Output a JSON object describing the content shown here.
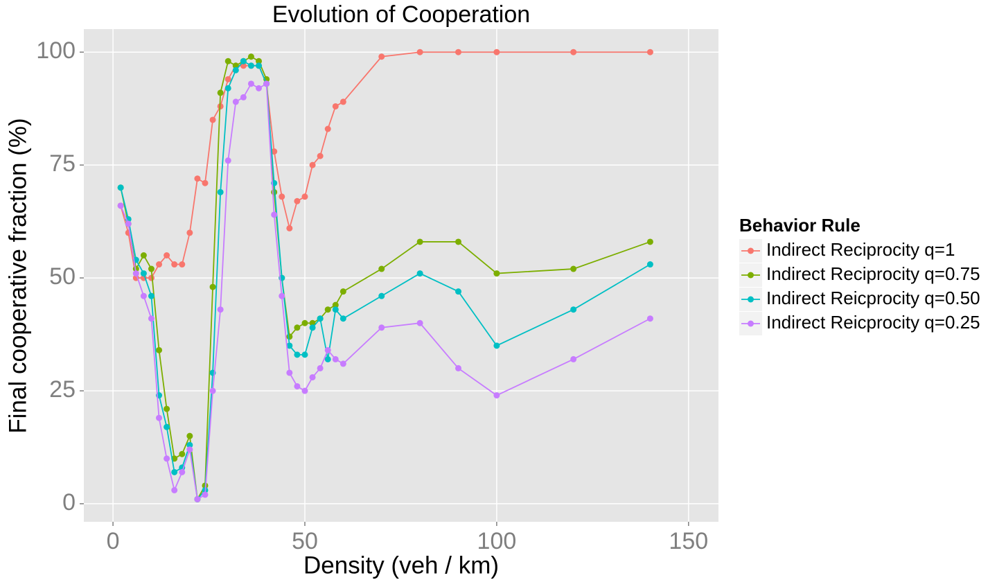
{
  "chart_data": {
    "type": "line",
    "title": "Evolution of Cooperation",
    "x_label": "Density (veh / km)",
    "y_label": "Final cooperative fraction (%)",
    "legend_title": "Behavior Rule",
    "legend_position": "right",
    "grid": true,
    "xlim": [
      -7.6,
      157.8
    ],
    "ylim": [
      -4,
      105.1
    ],
    "xticks": [
      0,
      50,
      100,
      150
    ],
    "yticks": [
      0,
      25,
      50,
      75,
      100
    ],
    "x": [
      2,
      4,
      6,
      8,
      10,
      12,
      14,
      16,
      18,
      20,
      22,
      24,
      26,
      28,
      30,
      32,
      34,
      36,
      38,
      40,
      42,
      44,
      46,
      48,
      50,
      52,
      54,
      56,
      58,
      60,
      70,
      80,
      90,
      100,
      120,
      140
    ],
    "series": [
      {
        "name": "Indirect Reciprocity q=1",
        "color": "#F8766D",
        "values": [
          66,
          60,
          50,
          50,
          50,
          53,
          55,
          53,
          53,
          60,
          72,
          71,
          85,
          88,
          94,
          97,
          97,
          97,
          97,
          93,
          78,
          68,
          61,
          67,
          68,
          75,
          77,
          83,
          88,
          89,
          99,
          100,
          100,
          100,
          100,
          100
        ]
      },
      {
        "name": "Indirect Reciprocity q=0.75",
        "color": "#7CAE00",
        "values": [
          70,
          62,
          52,
          55,
          52,
          34,
          21,
          10,
          11,
          15,
          1,
          4,
          48,
          91,
          98,
          97,
          98,
          99,
          98,
          94,
          69,
          50,
          37,
          39,
          40,
          40,
          41,
          43,
          44,
          47,
          52,
          58,
          58,
          51,
          52,
          58
        ]
      },
      {
        "name": "Indirect Reicprocity q=0.50",
        "color": "#00BFC4",
        "values": [
          70,
          63,
          54,
          51,
          46,
          24,
          17,
          7,
          8,
          13,
          1,
          3,
          29,
          69,
          92,
          96,
          98,
          97,
          97,
          93,
          71,
          50,
          35,
          33,
          33,
          39,
          41,
          32,
          43,
          41,
          46,
          51,
          47,
          35,
          43,
          53
        ]
      },
      {
        "name": "Indirect Reicprocity q=0.25",
        "color": "#C77CFF",
        "values": [
          66,
          62,
          51,
          46,
          41,
          19,
          10,
          3,
          7,
          12,
          1,
          2,
          25,
          43,
          76,
          89,
          90,
          93,
          92,
          93,
          64,
          46,
          29,
          26,
          25,
          28,
          30,
          34,
          32,
          31,
          39,
          40,
          30,
          24,
          32,
          41
        ]
      }
    ]
  }
}
